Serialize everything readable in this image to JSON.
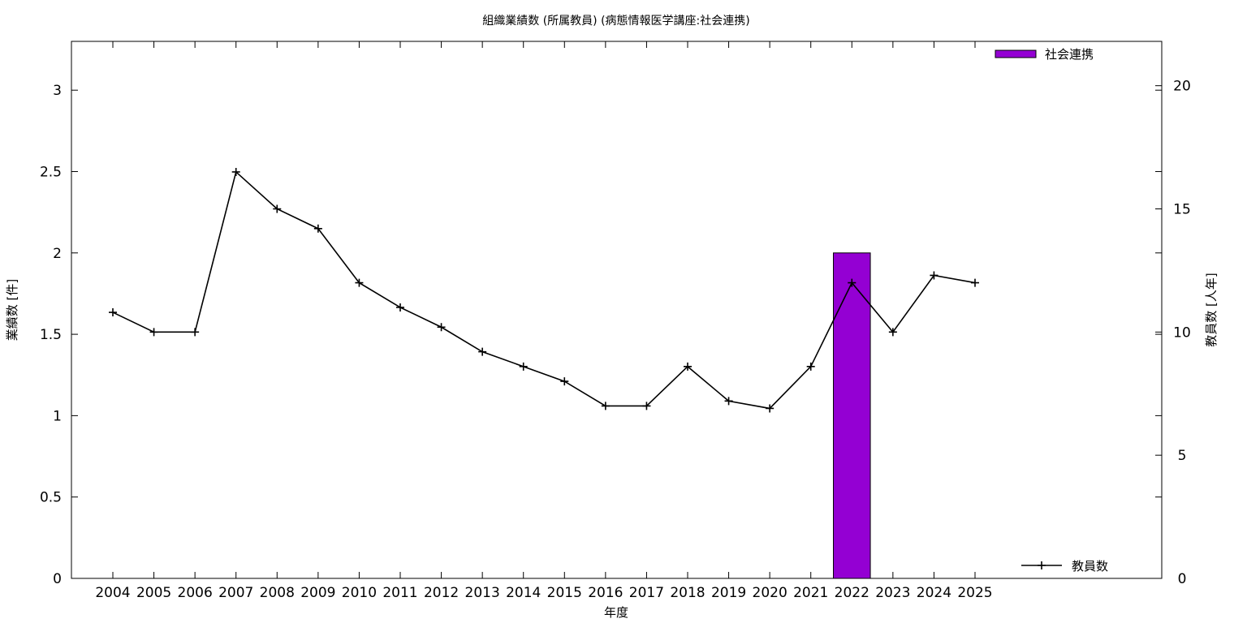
{
  "chart_data": {
    "type": "bar",
    "title": "組織業績数 (所属教員) (病態情報医学講座:社会連携)",
    "xlabel": "年度",
    "ylabel": "業績数 [件]",
    "y2label": "教員数 [人年]",
    "categories": [
      "2004",
      "2005",
      "2006",
      "2007",
      "2008",
      "2009",
      "2010",
      "2011",
      "2012",
      "2013",
      "2014",
      "2015",
      "2016",
      "2017",
      "2018",
      "2019",
      "2020",
      "2021",
      "2022",
      "2023",
      "2024",
      "2025"
    ],
    "ylim": [
      0,
      3.3
    ],
    "y_ticks": [
      "0",
      "0.5",
      "1",
      "1.5",
      "2",
      "2.5",
      "3"
    ],
    "y2lim": [
      0,
      21.8
    ],
    "y2_ticks": [
      "0",
      "5",
      "10",
      "15",
      "20"
    ],
    "grid": false,
    "series": [
      {
        "name": "社会連携",
        "kind": "bar",
        "axis": "left",
        "color": "#9400d3",
        "values": [
          0,
          0,
          0,
          0,
          0,
          0,
          0,
          0,
          0,
          0,
          0,
          0,
          0,
          0,
          0,
          0,
          0,
          0,
          2,
          0,
          0,
          0
        ],
        "legend_position": "top-right"
      },
      {
        "name": "教員数",
        "kind": "line",
        "axis": "right",
        "color": "#000000",
        "marker": "plus",
        "values": [
          10.8,
          10,
          10,
          16.5,
          15,
          14.2,
          12,
          11,
          10.2,
          9.2,
          8.6,
          8,
          7,
          7,
          8.6,
          7.2,
          6.9,
          8.6,
          12,
          10,
          12.3,
          12
        ],
        "legend_position": "bottom-right"
      }
    ]
  }
}
